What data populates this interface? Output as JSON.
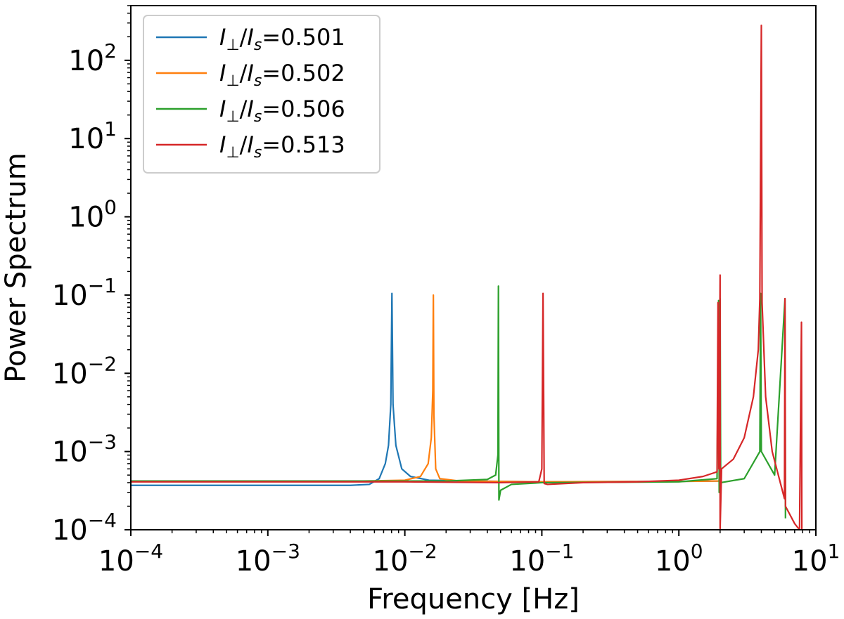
{
  "chart_data": {
    "type": "line",
    "xlabel": "Frequency [Hz]",
    "ylabel": "Power Spectrum",
    "xscale": "log",
    "yscale": "log",
    "xlim": [
      0.0001,
      10
    ],
    "ylim": [
      0.0001,
      500
    ],
    "grid": false,
    "legend_position": "top-left",
    "x_ticks": [
      {
        "value": 0.0001,
        "base": "10",
        "exp": "−4"
      },
      {
        "value": 0.001,
        "base": "10",
        "exp": "−3"
      },
      {
        "value": 0.01,
        "base": "10",
        "exp": "−2"
      },
      {
        "value": 0.1,
        "base": "10",
        "exp": "−1"
      },
      {
        "value": 1,
        "base": "10",
        "exp": "0"
      },
      {
        "value": 10,
        "base": "10",
        "exp": "1"
      }
    ],
    "y_ticks": [
      {
        "value": 0.0001,
        "base": "10",
        "exp": "−4"
      },
      {
        "value": 0.001,
        "base": "10",
        "exp": "−3"
      },
      {
        "value": 0.01,
        "base": "10",
        "exp": "−2"
      },
      {
        "value": 0.1,
        "base": "10",
        "exp": "−1"
      },
      {
        "value": 1,
        "base": "10",
        "exp": "0"
      },
      {
        "value": 10,
        "base": "10",
        "exp": "1"
      },
      {
        "value": 100,
        "base": "10",
        "exp": "2"
      }
    ],
    "series": [
      {
        "name": "I⊥/Is=0.501",
        "label_value": "0.501",
        "color": "#1f77b4",
        "points": [
          [
            0.0001,
            0.00037
          ],
          [
            0.001,
            0.00037
          ],
          [
            0.004,
            0.00037
          ],
          [
            0.0055,
            0.00038
          ],
          [
            0.0065,
            0.00045
          ],
          [
            0.0072,
            0.0007
          ],
          [
            0.0076,
            0.0012
          ],
          [
            0.0079,
            0.004
          ],
          [
            0.00805,
            0.105
          ],
          [
            0.0082,
            0.004
          ],
          [
            0.0086,
            0.0012
          ],
          [
            0.0095,
            0.0006
          ],
          [
            0.011,
            0.00048
          ],
          [
            0.015,
            0.00043
          ],
          [
            0.03,
            0.00042
          ],
          [
            0.1,
            0.00041
          ],
          [
            1,
            0.000415
          ],
          [
            2,
            0.00042
          ]
        ]
      },
      {
        "name": "I⊥/Is=0.502",
        "label_value": "0.502",
        "color": "#ff7f0e",
        "points": [
          [
            0.0001,
            0.00042
          ],
          [
            0.005,
            0.00042
          ],
          [
            0.01,
            0.00043
          ],
          [
            0.013,
            0.00048
          ],
          [
            0.0148,
            0.0007
          ],
          [
            0.0156,
            0.0015
          ],
          [
            0.016,
            0.006
          ],
          [
            0.01615,
            0.1
          ],
          [
            0.0163,
            0.003
          ],
          [
            0.0168,
            0.0006
          ],
          [
            0.018,
            0.00045
          ],
          [
            0.025,
            0.00042
          ],
          [
            0.1,
            0.00041
          ],
          [
            1,
            0.000415
          ],
          [
            2,
            0.00042
          ]
        ]
      },
      {
        "name": "I⊥/Is=0.506",
        "label_value": "0.506",
        "color": "#2ca02c",
        "points": [
          [
            0.0001,
            0.00042
          ],
          [
            0.02,
            0.00042
          ],
          [
            0.04,
            0.00044
          ],
          [
            0.046,
            0.0005
          ],
          [
            0.0478,
            0.0009
          ],
          [
            0.0482,
            0.13
          ],
          [
            0.0486,
            0.00024
          ],
          [
            0.05,
            0.00032
          ],
          [
            0.06,
            0.00038
          ],
          [
            0.1,
            0.0004
          ],
          [
            1,
            0.00041
          ],
          [
            1.9,
            0.00045
          ],
          [
            1.95,
            0.085
          ],
          [
            1.97,
            0.0003
          ],
          [
            2.0,
            0.09
          ],
          [
            2.02,
            0.0004
          ],
          [
            3,
            0.00045
          ],
          [
            3.9,
            0.001
          ],
          [
            3.95,
            0.105
          ],
          [
            4.0,
            0.001
          ],
          [
            5,
            0.0005
          ],
          [
            5.95,
            0.09
          ],
          [
            6.0,
            0.00014
          ]
        ]
      },
      {
        "name": "I⊥/Is=0.513",
        "label_value": "0.513",
        "color": "#d62728",
        "points": [
          [
            0.0001,
            0.00041
          ],
          [
            0.01,
            0.00041
          ],
          [
            0.05,
            0.0004
          ],
          [
            0.095,
            0.00041
          ],
          [
            0.1,
            0.0006
          ],
          [
            0.102,
            0.105
          ],
          [
            0.104,
            0.00039
          ],
          [
            0.11,
            0.00038
          ],
          [
            0.2,
            0.0004
          ],
          [
            0.5,
            0.00041
          ],
          [
            1,
            0.00043
          ],
          [
            1.5,
            0.00048
          ],
          [
            1.9,
            0.00055
          ],
          [
            1.93,
            0.08
          ],
          [
            1.96,
            0.0006
          ],
          [
            2.0,
            0.18
          ],
          [
            2.0,
            0.0001
          ],
          [
            2.05,
            0.0006
          ],
          [
            2.5,
            0.0008
          ],
          [
            3,
            0.0015
          ],
          [
            3.5,
            0.005
          ],
          [
            3.8,
            0.02
          ],
          [
            3.9,
            0.09
          ],
          [
            4.0,
            280
          ],
          [
            4.05,
            0.08
          ],
          [
            4.3,
            0.005
          ],
          [
            4.8,
            0.001
          ],
          [
            5.5,
            0.0004
          ],
          [
            5.9,
            0.00025
          ],
          [
            5.95,
            0.09
          ],
          [
            6.0,
            0.0002
          ],
          [
            7,
            0.00012
          ],
          [
            7.6,
            0.0001
          ],
          [
            7.85,
            0.045
          ],
          [
            7.9,
            0.0001
          ]
        ]
      }
    ]
  },
  "legend": {
    "prefix_main": "I",
    "prefix_sub": "⊥",
    "slash": "/",
    "den_main": "I",
    "den_sub": "s",
    "equals": "="
  }
}
